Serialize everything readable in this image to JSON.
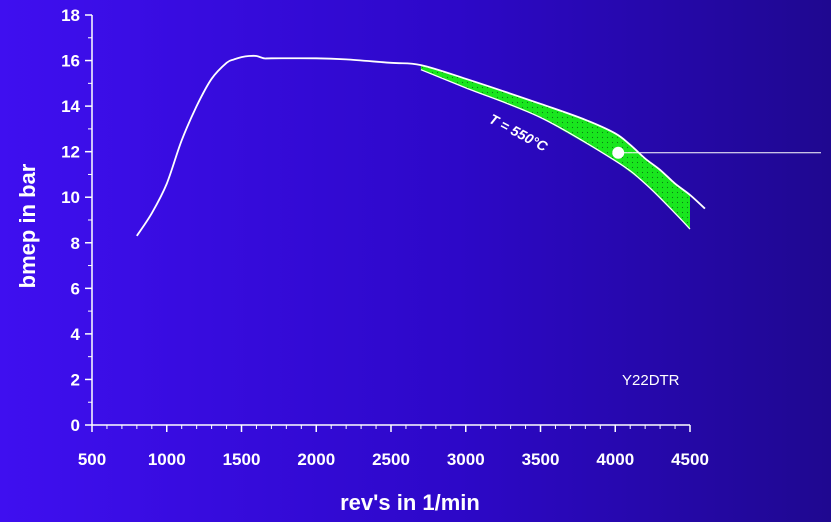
{
  "chart_data": {
    "type": "line",
    "title": "",
    "xlabel": "rev's in 1/min",
    "ylabel": "bmep in bar",
    "xlim": [
      500,
      4500
    ],
    "ylim": [
      0,
      18
    ],
    "xticks": [
      500,
      1000,
      1500,
      2000,
      2500,
      3000,
      3500,
      4000,
      4500
    ],
    "yticks": [
      0,
      2,
      4,
      6,
      8,
      10,
      12,
      14,
      16,
      18
    ],
    "grid": false,
    "series": [
      {
        "color": "#ffffff",
        "x": [
          800,
          900,
          1000,
          1100,
          1200,
          1300,
          1400,
          1450,
          1500,
          1550,
          1600,
          1650,
          1700,
          2000,
          2200,
          2500,
          2700,
          3000,
          3500,
          3800,
          4000,
          4100,
          4200,
          4300,
          4400,
          4500,
          4600
        ],
        "y": [
          8.3,
          9.3,
          10.6,
          12.5,
          14.0,
          15.2,
          15.9,
          16.05,
          16.15,
          16.2,
          16.2,
          16.1,
          16.1,
          16.1,
          16.05,
          15.9,
          15.8,
          15.2,
          14.1,
          13.4,
          12.8,
          12.3,
          11.7,
          11.2,
          10.6,
          10.1,
          9.5
        ]
      }
    ],
    "shaded_region": {
      "color": "#19e61e",
      "upper": {
        "x": [
          2700,
          3000,
          3500,
          3800,
          4000,
          4100,
          4200,
          4300,
          4400,
          4500
        ],
        "y": [
          15.8,
          15.2,
          14.1,
          13.4,
          12.8,
          12.3,
          11.7,
          11.2,
          10.6,
          10.1
        ]
      },
      "lower": {
        "x": [
          2700,
          3000,
          3500,
          4000,
          4200,
          4400,
          4500
        ],
        "y": [
          15.6,
          14.8,
          13.5,
          11.6,
          10.6,
          9.3,
          8.6
        ]
      }
    },
    "marker": {
      "x": 4020,
      "y": 11.95,
      "color": "#ffffff"
    },
    "annotations": {
      "temperature": "T = 550°C",
      "model": "Y22DTR"
    }
  }
}
